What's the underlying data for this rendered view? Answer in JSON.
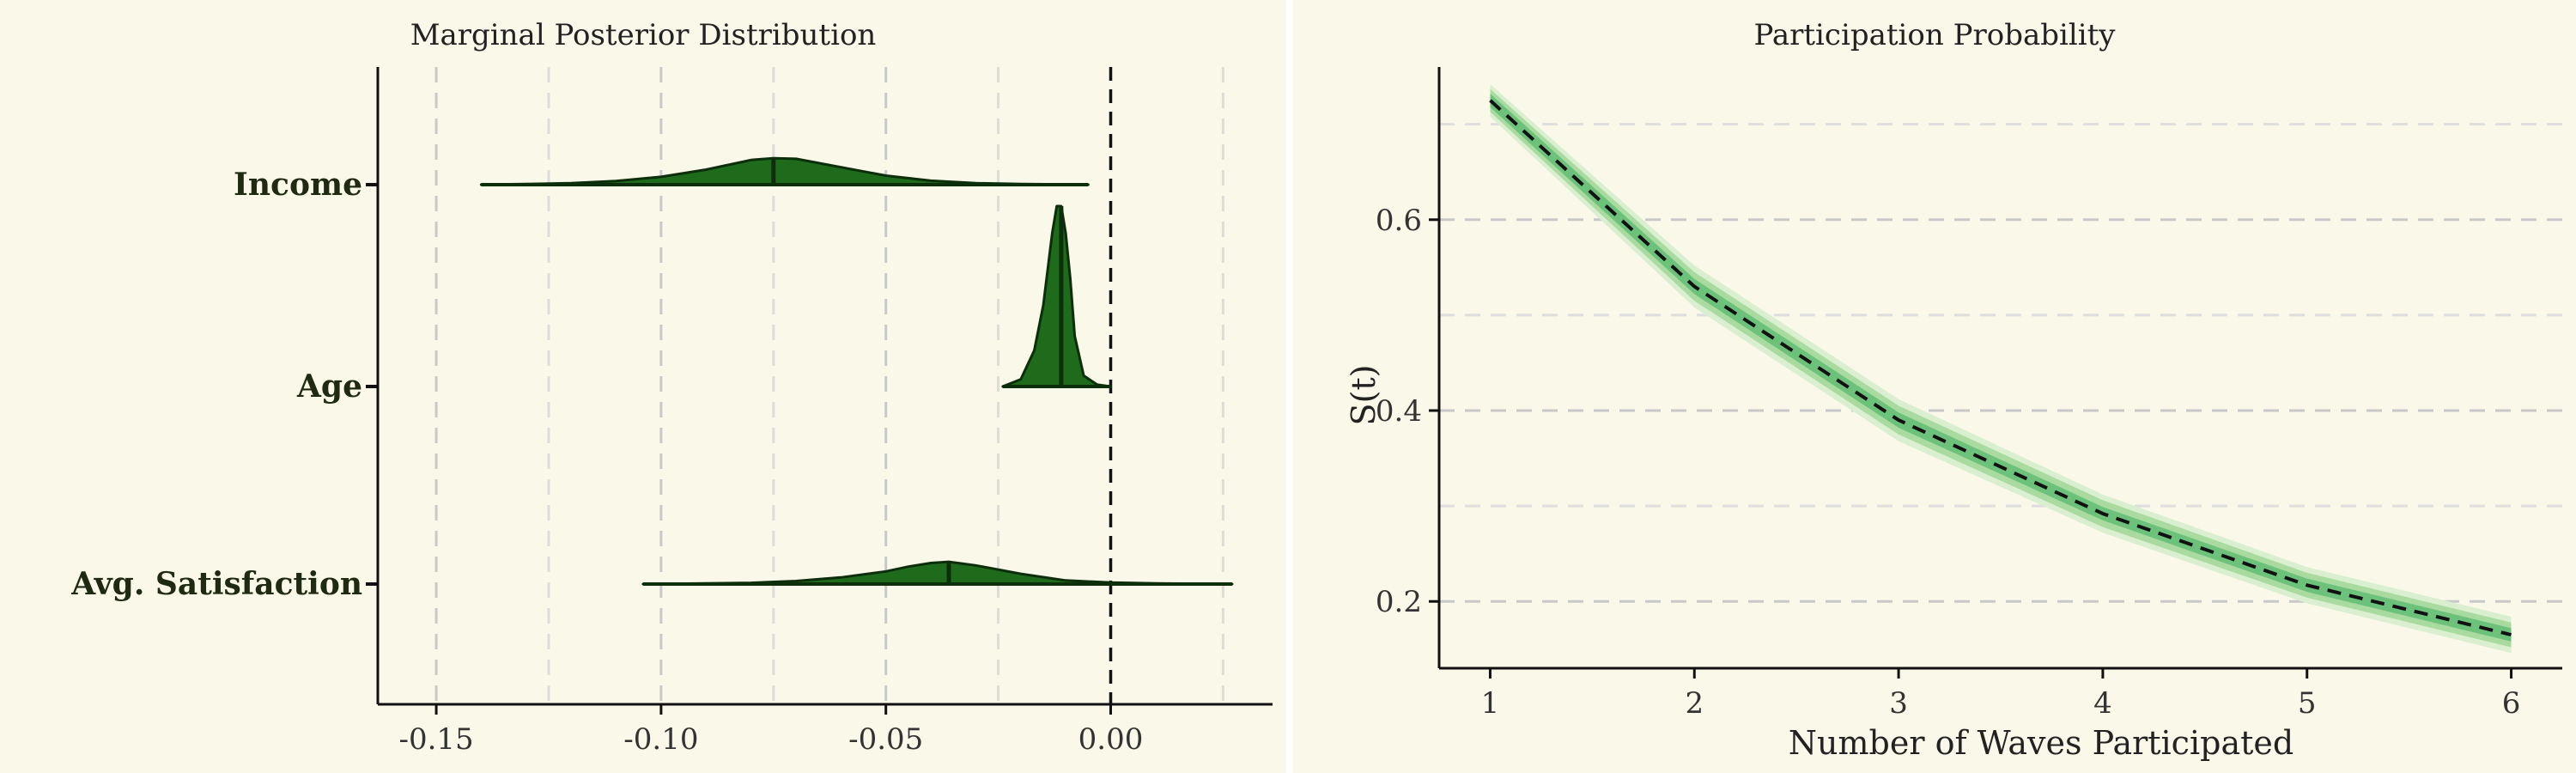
{
  "colors": {
    "background": "#faf8e9",
    "density_fill": "#1f6b1c",
    "density_stroke": "#0d2e0b",
    "band_outer": "#d9efcf",
    "band_mid": "#a9dba0",
    "band_inner": "#6cc27a",
    "grid": "#c8c8c8"
  },
  "chart_data": [
    {
      "type": "area",
      "title": "Marginal Posterior Distribution",
      "xlabel": "",
      "ylabel": "",
      "xlim": [
        -0.163,
        0.036
      ],
      "x_ticks": [
        -0.15,
        -0.1,
        -0.05,
        0.0
      ],
      "x_tick_labels": [
        "-0.15",
        "-0.10",
        "-0.05",
        "0.00"
      ],
      "minor_gridlines": [
        -0.125,
        -0.075,
        -0.025,
        0.025
      ],
      "reference_line": 0.0,
      "categories": [
        "Income",
        "Age",
        "Avg. Satisfaction"
      ],
      "series": [
        {
          "name": "Income",
          "median": -0.075,
          "min": -0.14,
          "max": -0.005,
          "density": [
            [
              -0.14,
              0
            ],
            [
              -0.13,
              0.02
            ],
            [
              -0.12,
              0.05
            ],
            [
              -0.11,
              0.12
            ],
            [
              -0.1,
              0.26
            ],
            [
              -0.09,
              0.5
            ],
            [
              -0.08,
              0.82
            ],
            [
              -0.075,
              0.88
            ],
            [
              -0.07,
              0.86
            ],
            [
              -0.06,
              0.58
            ],
            [
              -0.05,
              0.3
            ],
            [
              -0.04,
              0.13
            ],
            [
              -0.03,
              0.05
            ],
            [
              -0.02,
              0.02
            ],
            [
              -0.005,
              0
            ]
          ]
        },
        {
          "name": "Age",
          "median": -0.011,
          "min": -0.024,
          "max": 0.0,
          "density": [
            [
              -0.024,
              0
            ],
            [
              -0.02,
              0.04
            ],
            [
              -0.017,
              0.2
            ],
            [
              -0.015,
              0.45
            ],
            [
              -0.013,
              0.85
            ],
            [
              -0.012,
              1.0
            ],
            [
              -0.011,
              1.0
            ],
            [
              -0.01,
              0.85
            ],
            [
              -0.009,
              0.6
            ],
            [
              -0.008,
              0.28
            ],
            [
              -0.006,
              0.06
            ],
            [
              -0.003,
              0.01
            ],
            [
              0.0,
              0
            ]
          ]
        },
        {
          "name": "Avg. Satisfaction",
          "median": -0.036,
          "min": -0.104,
          "max": 0.027,
          "density": [
            [
              -0.104,
              0
            ],
            [
              -0.09,
              0.02
            ],
            [
              -0.08,
              0.04
            ],
            [
              -0.07,
              0.1
            ],
            [
              -0.06,
              0.22
            ],
            [
              -0.05,
              0.42
            ],
            [
              -0.045,
              0.58
            ],
            [
              -0.04,
              0.7
            ],
            [
              -0.036,
              0.74
            ],
            [
              -0.03,
              0.62
            ],
            [
              -0.02,
              0.34
            ],
            [
              -0.01,
              0.12
            ],
            [
              0.0,
              0.05
            ],
            [
              0.01,
              0.02
            ],
            [
              0.027,
              0
            ]
          ]
        }
      ]
    },
    {
      "type": "line",
      "title": "Participation Probability",
      "xlabel": "Number of Waves Participated",
      "ylabel": "S(t)",
      "xlim": [
        0.75,
        6.25
      ],
      "ylim": [
        0.13,
        0.76
      ],
      "x": [
        1,
        2,
        3,
        4,
        5,
        6
      ],
      "x_tick_labels": [
        "1",
        "2",
        "3",
        "4",
        "5",
        "6"
      ],
      "y_ticks": [
        0.2,
        0.4,
        0.6
      ],
      "y_tick_labels": [
        "0.2",
        "0.4",
        "0.6"
      ],
      "y_minor_gridlines": [
        0.3,
        0.5,
        0.7
      ],
      "series": [
        {
          "name": "median",
          "values": [
            0.725,
            0.53,
            0.39,
            0.292,
            0.217,
            0.165
          ]
        },
        {
          "name": "band_outer",
          "lower": [
            0.708,
            0.508,
            0.368,
            0.272,
            0.198,
            0.146
          ],
          "upper": [
            0.742,
            0.552,
            0.412,
            0.312,
            0.236,
            0.184
          ]
        },
        {
          "name": "band_mid",
          "lower": [
            0.713,
            0.515,
            0.375,
            0.278,
            0.204,
            0.152
          ],
          "upper": [
            0.737,
            0.545,
            0.405,
            0.306,
            0.23,
            0.178
          ]
        },
        {
          "name": "band_inner",
          "lower": [
            0.718,
            0.522,
            0.382,
            0.285,
            0.21,
            0.158
          ],
          "upper": [
            0.732,
            0.538,
            0.398,
            0.299,
            0.224,
            0.172
          ]
        }
      ]
    }
  ]
}
